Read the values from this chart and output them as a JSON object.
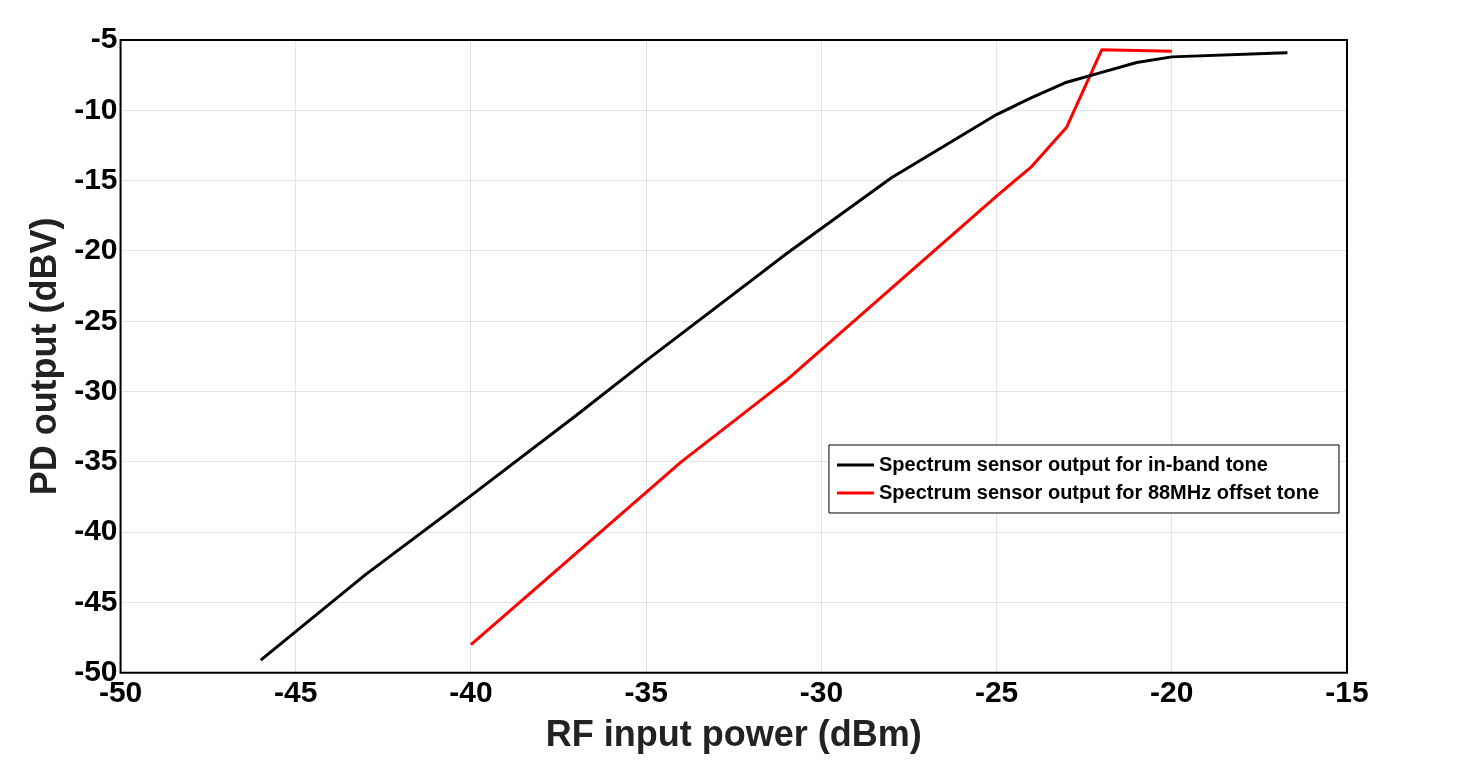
{
  "chart_data": {
    "type": "line",
    "xlabel": "RF input power (dBm)",
    "ylabel": "PD output (dBV)",
    "xlim": [
      -50,
      -15
    ],
    "xticks": [
      -50,
      -45,
      -40,
      -35,
      -30,
      -25,
      -20,
      -15
    ],
    "ylim": [
      -50,
      -5
    ],
    "yticks": [
      -50,
      -45,
      -40,
      -35,
      -30,
      -25,
      -20,
      -15,
      -10,
      -5
    ],
    "grid": true,
    "legend": "right",
    "marker": "none",
    "line_style": "solid",
    "series": [
      {
        "name": "Spectrum sensor output for in-band tone",
        "color": "#000000",
        "x": [
          -46,
          -43,
          -40,
          -37,
          -35,
          -31,
          -28,
          -25,
          -24,
          -23,
          -22,
          -21,
          -20,
          -16.7
        ],
        "values": [
          -49.1,
          -43,
          -37.4,
          -31.7,
          -27.8,
          -20.2,
          -14.8,
          -10.3,
          -9.1,
          -8,
          -7.3,
          -6.6,
          -6.2,
          -5.9
        ]
      },
      {
        "name": "Spectrum sensor output for 88MHz offset tone",
        "color": "#ff0000",
        "x": [
          -40,
          -34,
          -31,
          -25,
          -24,
          -23,
          -22,
          -20
        ],
        "values": [
          -48,
          -35,
          -29.2,
          -16.1,
          -14,
          -11.2,
          -5.7,
          -5.8
        ]
      }
    ]
  }
}
